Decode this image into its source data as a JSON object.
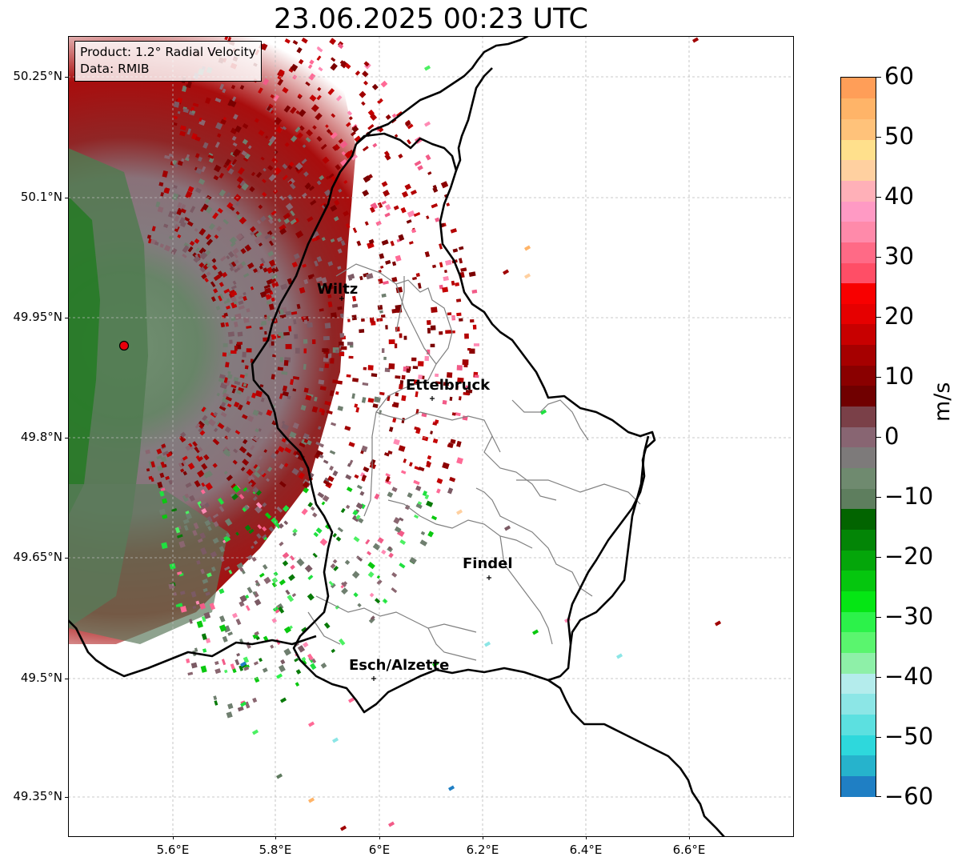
{
  "title": "23.06.2025 00:23 UTC",
  "info": {
    "product": "Product: 1.2° Radial Velocity",
    "source": "Data: RMIB"
  },
  "lat_labels": [
    "50.25°N",
    "50.1°N",
    "49.95°N",
    "49.8°N",
    "49.65°N",
    "49.5°N",
    "49.35°N"
  ],
  "lon_labels": [
    "5.6°E",
    "5.8°E",
    "6°E",
    "6.2°E",
    "6.4°E",
    "6.6°E"
  ],
  "cities": [
    {
      "name": "Wiltz"
    },
    {
      "name": "Ettelbruck"
    },
    {
      "name": "Findel"
    },
    {
      "name": "Esch/Alzette"
    }
  ],
  "colorbar": {
    "unit": "m/s",
    "ticks": [
      "60",
      "50",
      "40",
      "30",
      "20",
      "10",
      "0",
      "−10",
      "−20",
      "−30",
      "−40",
      "−50",
      "−60"
    ],
    "range": [
      -60,
      60
    ],
    "colors": [
      "#1f7fc4",
      "#26b3cc",
      "#2ed8dc",
      "#5ce0e0",
      "#8ce6e6",
      "#b4ecec",
      "#8ef0a8",
      "#5af56e",
      "#2cf24a",
      "#05e614",
      "#05c60e",
      "#04a60a",
      "#038506",
      "#026400",
      "#5e7e5e",
      "#6f8a6f",
      "#7d7a7a",
      "#886572",
      "#7a4048",
      "#700000",
      "#8a0000",
      "#a60000",
      "#c80000",
      "#e60000",
      "#f80000",
      "#ff4e66",
      "#ff6a86",
      "#ff8aaa",
      "#ff9ac4",
      "#ffb0b8",
      "#ffd0a0",
      "#ffe08c",
      "#ffc27a",
      "#ffb468",
      "#ff9e58"
    ]
  }
}
